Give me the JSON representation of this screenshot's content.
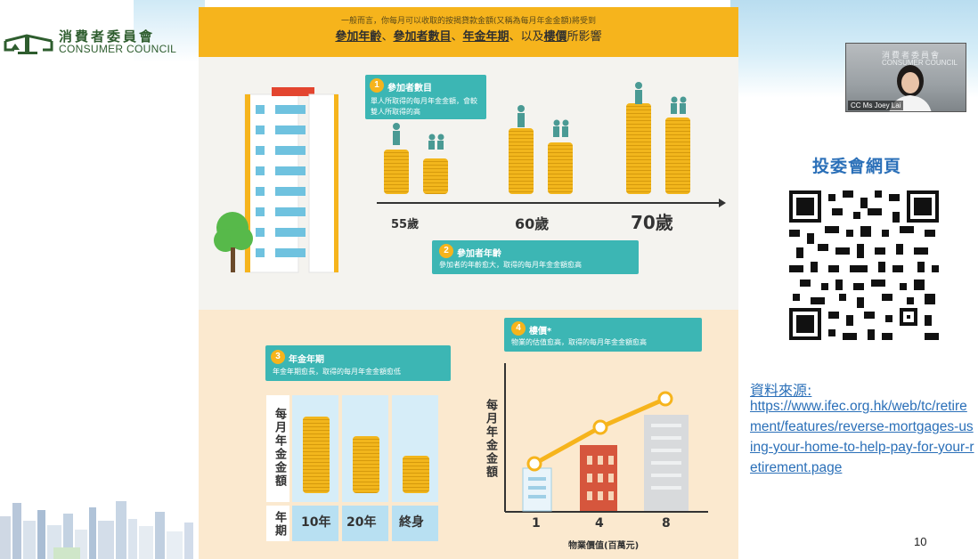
{
  "logo": {
    "zh": "消費者委員會",
    "en": "CONSUMER COUNCIL"
  },
  "infographic": {
    "banner_sub": "一般而言，你每月可以收取的按揭貸款金額(又稱為每月年金金額)將受到",
    "banner_items": [
      "參加年齡",
      "參加者數目",
      "年金年期"
    ],
    "banner_and": "以及",
    "banner_last": "樓價",
    "banner_tail": "所影響",
    "box1": {
      "num": "1",
      "title": "參加者數目",
      "text": "單人所取得的每月年金金額，會較雙人所取得的高"
    },
    "box2": {
      "num": "2",
      "title": "參加者年齡",
      "text": "參加者的年齡愈大，取得的每月年金金額愈高"
    },
    "box3": {
      "num": "3",
      "title": "年金年期",
      "text": "年金年期愈長，取得的每月年金金額愈低"
    },
    "box4": {
      "num": "4",
      "title": "樓價*",
      "text": "物業的估值愈高，取得的每月年金金額愈高"
    },
    "ages": [
      "55歲",
      "60歲",
      "70歲"
    ],
    "term_side_top": "每月年金金額",
    "term_side_bottom": "年期",
    "terms": [
      "10年",
      "20年",
      "終身"
    ],
    "chart_ylabel": "每月年金金額",
    "chart_xlabel": "物業價值(百萬元)",
    "chart_x": [
      "1",
      "4",
      "8"
    ]
  },
  "right": {
    "qr_title": "投委會網頁",
    "source_label": "資料來源:",
    "source_url": "https://www.ifec.org.hk/web/tc/retirement/features/reverse-mortgages-using-your-home-to-help-pay-for-your-retirement.page",
    "page_number": "10"
  },
  "video": {
    "caption": "CC Ms Joey Lai",
    "watermark_zh": "消費者委員會",
    "watermark_en": "CONSUMER COUNCIL"
  },
  "colors": {
    "accent_yellow": "#f6b41c",
    "teal": "#3cb6b4",
    "link_blue": "#2a6fb8",
    "logo_green": "#2e5d2e"
  }
}
